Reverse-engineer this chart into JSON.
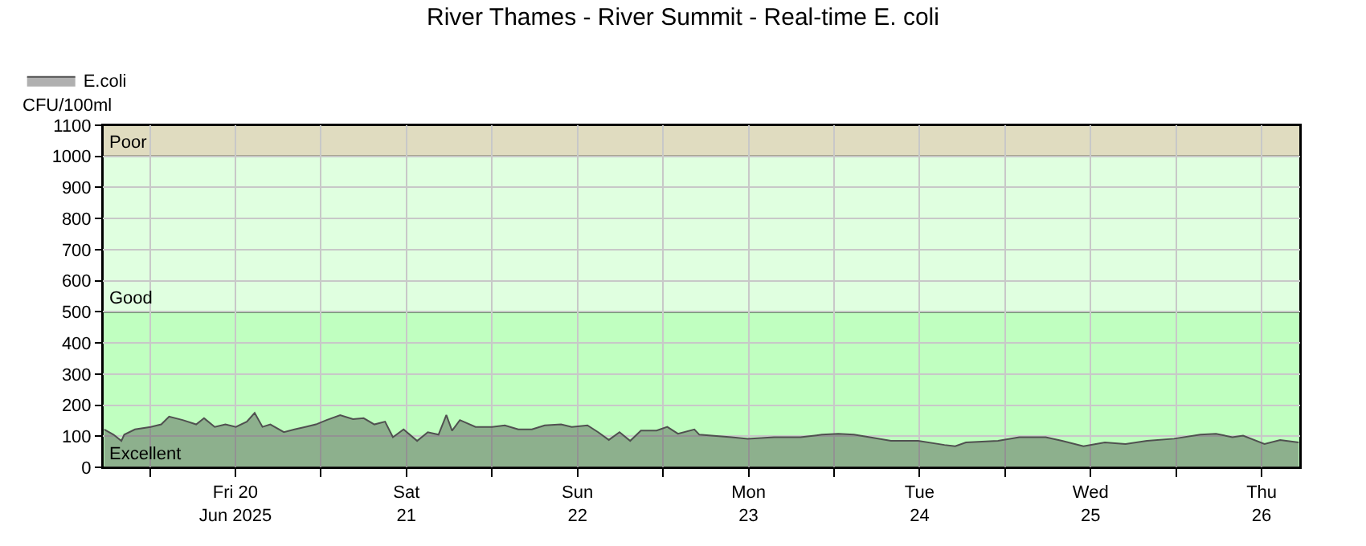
{
  "chart_data": {
    "type": "area",
    "title": "River Thames - River Summit - Real-time E. coli",
    "ylabel": "CFU/100ml",
    "x": [
      "2025-06-19T05:36",
      "2025-06-19T06:54",
      "2025-06-19T08:00",
      "2025-06-19T08:24",
      "2025-06-19T09:54",
      "2025-06-19T12:06",
      "2025-06-19T13:36",
      "2025-06-19T14:42",
      "2025-06-19T16:36",
      "2025-06-19T18:30",
      "2025-06-19T19:36",
      "2025-06-19T21:06",
      "2025-06-19T22:36",
      "2025-06-20T00:04",
      "2025-06-20T01:36",
      "2025-06-20T02:42",
      "2025-06-20T03:48",
      "2025-06-20T04:54",
      "2025-06-20T06:48",
      "2025-06-20T08:18",
      "2025-06-20T09:48",
      "2025-06-20T11:18",
      "2025-06-20T12:48",
      "2025-06-20T14:42",
      "2025-06-20T16:30",
      "2025-06-20T18:00",
      "2025-06-20T19:30",
      "2025-06-20T21:00",
      "2025-06-20T22:06",
      "2025-06-20T23:36",
      "2025-06-21T01:30",
      "2025-06-21T03:00",
      "2025-06-21T04:30",
      "2025-06-21T05:36",
      "2025-06-21T06:24",
      "2025-06-21T07:30",
      "2025-06-21T09:42",
      "2025-06-21T12:00",
      "2025-06-21T13:48",
      "2025-06-21T15:42",
      "2025-06-21T17:36",
      "2025-06-21T19:24",
      "2025-06-21T21:42",
      "2025-06-21T23:12",
      "2025-06-22T01:24",
      "2025-06-22T02:54",
      "2025-06-22T04:24",
      "2025-06-22T05:54",
      "2025-06-22T07:24",
      "2025-06-22T08:54",
      "2025-06-22T11:06",
      "2025-06-22T12:36",
      "2025-06-22T14:06",
      "2025-06-22T16:24",
      "2025-06-22T17:06",
      "2025-06-22T21:36",
      "2025-06-22T23:54",
      "2025-06-23T03:36",
      "2025-06-23T07:18",
      "2025-06-23T10:18",
      "2025-06-23T12:36",
      "2025-06-23T14:48",
      "2025-06-23T17:00",
      "2025-06-23T20:00",
      "2025-06-23T23:48",
      "2025-06-24T03:30",
      "2025-06-24T05:00",
      "2025-06-24T06:30",
      "2025-06-24T11:00",
      "2025-06-24T14:00",
      "2025-06-24T17:42",
      "2025-06-24T20:00",
      "2025-06-24T23:00",
      "2025-06-25T02:00",
      "2025-06-25T04:54",
      "2025-06-25T07:54",
      "2025-06-25T11:42",
      "2025-06-25T15:24",
      "2025-06-25T17:36",
      "2025-06-25T19:54",
      "2025-06-25T21:24",
      "2025-06-26T00:24",
      "2025-06-26T02:36",
      "2025-06-26T05:12"
    ],
    "series": [
      {
        "name": "E.coli",
        "color": "#505050",
        "values": [
          122,
          105,
          85,
          105,
          122,
          130,
          138,
          163,
          152,
          138,
          158,
          130,
          138,
          130,
          147,
          175,
          130,
          138,
          113,
          122,
          130,
          138,
          152,
          168,
          155,
          158,
          138,
          147,
          97,
          122,
          85,
          113,
          105,
          168,
          118,
          152,
          130,
          130,
          135,
          122,
          122,
          135,
          138,
          130,
          135,
          113,
          88,
          113,
          85,
          118,
          118,
          130,
          108,
          122,
          105,
          97,
          92,
          97,
          97,
          105,
          108,
          105,
          97,
          85,
          85,
          72,
          68,
          80,
          85,
          97,
          97,
          85,
          68,
          80,
          75,
          85,
          92,
          105,
          108,
          97,
          102,
          75,
          88,
          80
        ]
      }
    ],
    "xlim": [
      "2025-06-19T05:24",
      "2025-06-26T05:24"
    ],
    "xticks": [
      {
        "value": "2025-06-19T12:00",
        "label": null
      },
      {
        "value": "2025-06-20",
        "label": "Fri 20\nJun 2025"
      },
      {
        "value": "2025-06-20T12:00",
        "label": null
      },
      {
        "value": "2025-06-21",
        "label": "Sat\n21"
      },
      {
        "value": "2025-06-21T12:00",
        "label": null
      },
      {
        "value": "2025-06-22",
        "label": "Sun\n22"
      },
      {
        "value": "2025-06-22T12:00",
        "label": null
      },
      {
        "value": "2025-06-23",
        "label": "Mon\n23"
      },
      {
        "value": "2025-06-23T12:00",
        "label": null
      },
      {
        "value": "2025-06-24",
        "label": "Tue\n24"
      },
      {
        "value": "2025-06-24T12:00",
        "label": null
      },
      {
        "value": "2025-06-25",
        "label": "Wed\n25"
      },
      {
        "value": "2025-06-25T12:00",
        "label": null
      },
      {
        "value": "2025-06-26",
        "label": "Thu\n26"
      }
    ],
    "ylim": [
      0,
      1100
    ],
    "yticks": [
      0,
      100,
      200,
      300,
      400,
      500,
      600,
      700,
      800,
      900,
      1000,
      1100
    ],
    "bands": [
      {
        "axis": "y",
        "from": 0,
        "to": 500,
        "label": "Excellent",
        "color": "#c0ffc0"
      },
      {
        "axis": "y",
        "from": 500,
        "to": 1000,
        "label": "Good",
        "color": "#e0ffe0"
      },
      {
        "axis": "y",
        "from": 1000,
        "to": 1100,
        "label": "Poor",
        "color": "#e0dcc0"
      }
    ],
    "grid": true,
    "legend": "top left"
  }
}
